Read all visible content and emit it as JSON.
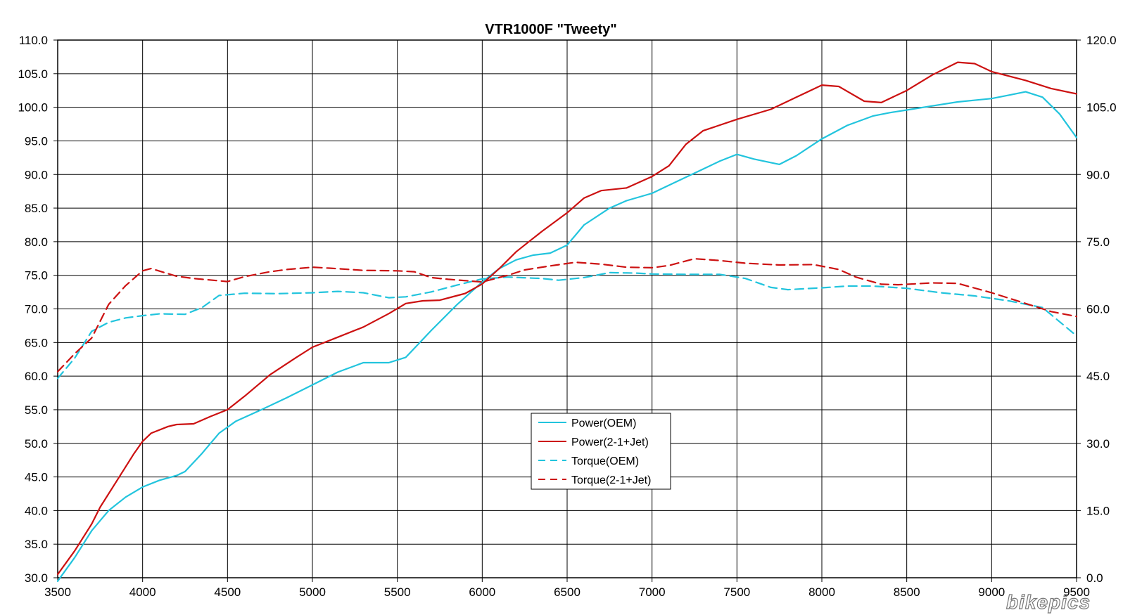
{
  "chart_data": {
    "type": "line",
    "title": "VTR1000F \"Tweety\"",
    "xlim": [
      3500,
      9500
    ],
    "x_ticks": [
      "3500",
      "4000",
      "4500",
      "5000",
      "5500",
      "6000",
      "6500",
      "7000",
      "7500",
      "8000",
      "8500",
      "9000",
      "9500"
    ],
    "ylim_left": [
      30.0,
      110.0
    ],
    "y_left_ticks": [
      "30.0",
      "35.0",
      "40.0",
      "45.0",
      "50.0",
      "55.0",
      "60.0",
      "65.0",
      "70.0",
      "75.0",
      "80.0",
      "85.0",
      "90.0",
      "95.0",
      "100.0",
      "105.0",
      "110.0"
    ],
    "ylim_right": [
      0.0,
      120.0
    ],
    "y_right_ticks": [
      "0.0",
      "15.0",
      "30.0",
      "45.0",
      "60.0",
      "75.0",
      "90.0",
      "105.0",
      "120.0"
    ],
    "grid": true,
    "legend_position": "center-bottom",
    "series": [
      {
        "name": "Power(OEM)",
        "axis": "left",
        "color": "#22c4dd",
        "dash": "solid",
        "points": [
          [
            3500,
            29.5
          ],
          [
            3600,
            33
          ],
          [
            3700,
            37
          ],
          [
            3800,
            40
          ],
          [
            3900,
            42
          ],
          [
            4000,
            43.5
          ],
          [
            4100,
            44.5
          ],
          [
            4200,
            45.2
          ],
          [
            4250,
            45.8
          ],
          [
            4350,
            48.5
          ],
          [
            4450,
            51.5
          ],
          [
            4550,
            53.3
          ],
          [
            4700,
            55
          ],
          [
            4850,
            56.8
          ],
          [
            5000,
            58.7
          ],
          [
            5150,
            60.6
          ],
          [
            5300,
            62
          ],
          [
            5450,
            62
          ],
          [
            5550,
            62.8
          ],
          [
            5700,
            66.8
          ],
          [
            5850,
            70.6
          ],
          [
            6000,
            74
          ],
          [
            6100,
            76
          ],
          [
            6200,
            77.3
          ],
          [
            6300,
            78
          ],
          [
            6400,
            78.3
          ],
          [
            6500,
            79.5
          ],
          [
            6600,
            82.5
          ],
          [
            6750,
            85
          ],
          [
            6850,
            86.1
          ],
          [
            7000,
            87.2
          ],
          [
            7100,
            88.4
          ],
          [
            7300,
            90.8
          ],
          [
            7400,
            92
          ],
          [
            7500,
            93
          ],
          [
            7600,
            92.3
          ],
          [
            7750,
            91.5
          ],
          [
            7850,
            92.8
          ],
          [
            8000,
            95.3
          ],
          [
            8150,
            97.3
          ],
          [
            8300,
            98.7
          ],
          [
            8400,
            99.2
          ],
          [
            8500,
            99.6
          ],
          [
            8650,
            100.2
          ],
          [
            8800,
            100.8
          ],
          [
            9000,
            101.3
          ],
          [
            9100,
            101.8
          ],
          [
            9200,
            102.3
          ],
          [
            9300,
            101.5
          ],
          [
            9400,
            99
          ],
          [
            9500,
            95.5
          ]
        ]
      },
      {
        "name": "Power(2-1+Jet)",
        "axis": "left",
        "color": "#cc1111",
        "dash": "solid",
        "points": [
          [
            3500,
            30.5
          ],
          [
            3600,
            34
          ],
          [
            3700,
            38
          ],
          [
            3750,
            40.5
          ],
          [
            3850,
            44.5
          ],
          [
            3950,
            48.5
          ],
          [
            4000,
            50.3
          ],
          [
            4050,
            51.5
          ],
          [
            4150,
            52.5
          ],
          [
            4200,
            52.8
          ],
          [
            4300,
            52.9
          ],
          [
            4400,
            54
          ],
          [
            4500,
            55
          ],
          [
            4600,
            57
          ],
          [
            4750,
            60.2
          ],
          [
            4900,
            62.7
          ],
          [
            5000,
            64.3
          ],
          [
            5150,
            65.8
          ],
          [
            5300,
            67.3
          ],
          [
            5450,
            69.3
          ],
          [
            5550,
            70.8
          ],
          [
            5650,
            71.2
          ],
          [
            5750,
            71.3
          ],
          [
            5900,
            72.3
          ],
          [
            6000,
            73.7
          ],
          [
            6100,
            76
          ],
          [
            6200,
            78.5
          ],
          [
            6350,
            81.5
          ],
          [
            6500,
            84.3
          ],
          [
            6600,
            86.5
          ],
          [
            6700,
            87.6
          ],
          [
            6850,
            88
          ],
          [
            7000,
            89.7
          ],
          [
            7100,
            91.3
          ],
          [
            7200,
            94.5
          ],
          [
            7300,
            96.5
          ],
          [
            7500,
            98.2
          ],
          [
            7700,
            99.7
          ],
          [
            7850,
            101.5
          ],
          [
            8000,
            103.3
          ],
          [
            8100,
            103.1
          ],
          [
            8250,
            100.9
          ],
          [
            8350,
            100.7
          ],
          [
            8500,
            102.5
          ],
          [
            8650,
            104.8
          ],
          [
            8800,
            106.7
          ],
          [
            8900,
            106.5
          ],
          [
            9000,
            105.3
          ],
          [
            9200,
            104
          ],
          [
            9350,
            102.8
          ],
          [
            9500,
            102
          ]
        ]
      },
      {
        "name": "Torque(OEM)",
        "axis": "right",
        "color": "#22c4dd",
        "dash": "dashed",
        "points": [
          [
            3500,
            44.5
          ],
          [
            3600,
            49
          ],
          [
            3700,
            55
          ],
          [
            3800,
            57
          ],
          [
            3900,
            58
          ],
          [
            4000,
            58.5
          ],
          [
            4100,
            58.9
          ],
          [
            4250,
            58.8
          ],
          [
            4350,
            60.3
          ],
          [
            4450,
            63
          ],
          [
            4600,
            63.5
          ],
          [
            4800,
            63.4
          ],
          [
            5000,
            63.6
          ],
          [
            5150,
            63.9
          ],
          [
            5300,
            63.6
          ],
          [
            5450,
            62.5
          ],
          [
            5550,
            62.7
          ],
          [
            5700,
            63.8
          ],
          [
            5850,
            65.3
          ],
          [
            6000,
            66.7
          ],
          [
            6150,
            67.1
          ],
          [
            6350,
            66.8
          ],
          [
            6450,
            66.4
          ],
          [
            6600,
            67
          ],
          [
            6750,
            68.1
          ],
          [
            6900,
            68
          ],
          [
            7000,
            67.8
          ],
          [
            7200,
            67.7
          ],
          [
            7400,
            67.7
          ],
          [
            7550,
            66.8
          ],
          [
            7700,
            64.8
          ],
          [
            7800,
            64.3
          ],
          [
            8000,
            64.7
          ],
          [
            8150,
            65.1
          ],
          [
            8300,
            65.1
          ],
          [
            8500,
            64.6
          ],
          [
            8700,
            63.6
          ],
          [
            8900,
            62.9
          ],
          [
            9100,
            61.8
          ],
          [
            9300,
            60.3
          ],
          [
            9500,
            54
          ]
        ]
      },
      {
        "name": "Torque(2-1+Jet)",
        "axis": "right",
        "color": "#cc1111",
        "dash": "dashed",
        "points": [
          [
            3500,
            46
          ],
          [
            3600,
            50
          ],
          [
            3700,
            53.5
          ],
          [
            3800,
            61
          ],
          [
            3900,
            65.2
          ],
          [
            4000,
            68.5
          ],
          [
            4050,
            69
          ],
          [
            4200,
            67.3
          ],
          [
            4300,
            66.8
          ],
          [
            4500,
            66.1
          ],
          [
            4600,
            67.2
          ],
          [
            4750,
            68.3
          ],
          [
            4850,
            68.8
          ],
          [
            5000,
            69.3
          ],
          [
            5100,
            69.1
          ],
          [
            5300,
            68.6
          ],
          [
            5500,
            68.5
          ],
          [
            5600,
            68.3
          ],
          [
            5700,
            67
          ],
          [
            5800,
            66.6
          ],
          [
            6000,
            66
          ],
          [
            6150,
            67.5
          ],
          [
            6250,
            68.7
          ],
          [
            6400,
            69.6
          ],
          [
            6550,
            70.4
          ],
          [
            6700,
            70
          ],
          [
            6850,
            69.3
          ],
          [
            7000,
            69.2
          ],
          [
            7100,
            69.7
          ],
          [
            7250,
            71.2
          ],
          [
            7400,
            70.8
          ],
          [
            7550,
            70.2
          ],
          [
            7750,
            69.8
          ],
          [
            7950,
            69.9
          ],
          [
            8100,
            68.8
          ],
          [
            8200,
            67.1
          ],
          [
            8350,
            65.5
          ],
          [
            8450,
            65.4
          ],
          [
            8650,
            65.8
          ],
          [
            8800,
            65.7
          ],
          [
            9000,
            63.6
          ],
          [
            9200,
            61.2
          ],
          [
            9350,
            59.4
          ],
          [
            9500,
            58.3
          ]
        ]
      }
    ]
  },
  "colors": {
    "grid": "#000000",
    "background": "#ffffff",
    "watermark": "#777777"
  },
  "watermark_text": "bikepics"
}
